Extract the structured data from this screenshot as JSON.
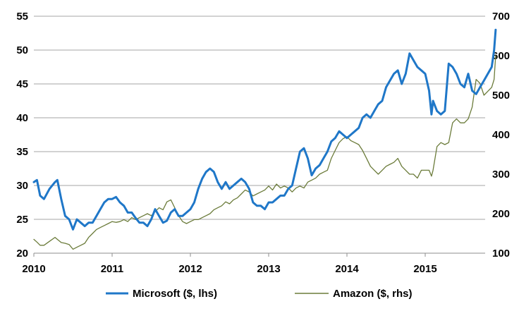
{
  "chart_data": {
    "type": "line",
    "title": "",
    "xlabel": "",
    "x_ticks": [
      "2010",
      "2011",
      "2012",
      "2013",
      "2014",
      "2015"
    ],
    "x_range": [
      2010,
      2015.9
    ],
    "y_left": {
      "label": "",
      "range": [
        20,
        55
      ],
      "ticks": [
        "20",
        "25",
        "30",
        "35",
        "40",
        "45",
        "50",
        "55"
      ]
    },
    "y_right": {
      "label": "",
      "range": [
        100,
        700
      ],
      "ticks": [
        "100",
        "200",
        "300",
        "400",
        "500",
        "600",
        "700"
      ]
    },
    "grid": "horizontal",
    "legend_position": "bottom",
    "series": [
      {
        "name": "Microsoft ($, lhs)",
        "axis": "left",
        "color": "#1f77c8",
        "x": [
          2010.0,
          2010.04,
          2010.08,
          2010.13,
          2010.2,
          2010.27,
          2010.3,
          2010.35,
          2010.4,
          2010.45,
          2010.5,
          2010.55,
          2010.6,
          2010.65,
          2010.7,
          2010.75,
          2010.8,
          2010.85,
          2010.9,
          2010.95,
          2011.0,
          2011.05,
          2011.1,
          2011.15,
          2011.2,
          2011.25,
          2011.3,
          2011.35,
          2011.4,
          2011.45,
          2011.5,
          2011.55,
          2011.6,
          2011.65,
          2011.7,
          2011.75,
          2011.8,
          2011.85,
          2011.9,
          2011.95,
          2012.0,
          2012.05,
          2012.1,
          2012.15,
          2012.2,
          2012.25,
          2012.3,
          2012.35,
          2012.4,
          2012.45,
          2012.5,
          2012.55,
          2012.6,
          2012.65,
          2012.7,
          2012.75,
          2012.8,
          2012.85,
          2012.9,
          2012.95,
          2013.0,
          2013.05,
          2013.1,
          2013.15,
          2013.2,
          2013.25,
          2013.3,
          2013.35,
          2013.4,
          2013.45,
          2013.5,
          2013.55,
          2013.6,
          2013.65,
          2013.7,
          2013.75,
          2013.8,
          2013.85,
          2013.9,
          2013.95,
          2014.0,
          2014.05,
          2014.1,
          2014.15,
          2014.2,
          2014.25,
          2014.3,
          2014.35,
          2014.4,
          2014.45,
          2014.5,
          2014.55,
          2014.6,
          2014.65,
          2014.7,
          2014.75,
          2014.8,
          2014.85,
          2014.9,
          2014.95,
          2015.0,
          2015.05,
          2015.08,
          2015.1,
          2015.15,
          2015.2,
          2015.25,
          2015.3,
          2015.35,
          2015.4,
          2015.45,
          2015.5,
          2015.55,
          2015.6,
          2015.65,
          2015.7,
          2015.75,
          2015.8,
          2015.85,
          2015.88,
          2015.9
        ],
        "values": [
          30.5,
          30.8,
          28.5,
          28.0,
          29.5,
          30.5,
          30.8,
          28.0,
          25.5,
          25.0,
          23.5,
          25.0,
          24.5,
          24.0,
          24.5,
          24.5,
          25.5,
          26.5,
          27.5,
          28.0,
          28.0,
          28.3,
          27.5,
          27.0,
          26.0,
          26.0,
          25.2,
          24.5,
          24.5,
          24.0,
          25.0,
          26.5,
          25.5,
          24.5,
          24.8,
          26.0,
          26.5,
          25.5,
          25.5,
          26.0,
          26.5,
          27.5,
          29.5,
          31.0,
          32.0,
          32.5,
          32.0,
          30.5,
          29.5,
          30.5,
          29.5,
          30.0,
          30.5,
          31.0,
          30.5,
          29.5,
          27.5,
          27.0,
          27.0,
          26.5,
          27.5,
          27.5,
          28.0,
          28.5,
          28.5,
          29.5,
          30.0,
          32.5,
          35.0,
          35.5,
          34.0,
          31.5,
          32.5,
          33.0,
          34.0,
          35.0,
          36.5,
          37.0,
          38.0,
          37.5,
          37.0,
          37.5,
          38.0,
          38.5,
          40.0,
          40.5,
          40.0,
          41.0,
          42.0,
          42.5,
          44.5,
          45.5,
          46.5,
          47.0,
          45.0,
          46.5,
          49.5,
          48.5,
          47.5,
          47.0,
          46.5,
          44.0,
          40.5,
          42.5,
          41.0,
          40.5,
          41.0,
          48.0,
          47.5,
          46.5,
          45.0,
          44.5,
          46.5,
          44.0,
          43.5,
          44.5,
          45.5,
          46.5,
          47.5,
          50.0,
          53.0
        ]
      },
      {
        "name": "Amazon ($, rhs)",
        "axis": "right",
        "color": "#6b7b3a",
        "x": [
          2010.0,
          2010.04,
          2010.08,
          2010.13,
          2010.2,
          2010.27,
          2010.3,
          2010.35,
          2010.4,
          2010.45,
          2010.5,
          2010.55,
          2010.6,
          2010.65,
          2010.7,
          2010.75,
          2010.8,
          2010.85,
          2010.9,
          2010.95,
          2011.0,
          2011.05,
          2011.1,
          2011.15,
          2011.2,
          2011.25,
          2011.3,
          2011.35,
          2011.4,
          2011.45,
          2011.5,
          2011.55,
          2011.6,
          2011.65,
          2011.7,
          2011.75,
          2011.8,
          2011.85,
          2011.9,
          2011.95,
          2012.0,
          2012.05,
          2012.1,
          2012.15,
          2012.2,
          2012.25,
          2012.3,
          2012.35,
          2012.4,
          2012.45,
          2012.5,
          2012.55,
          2012.6,
          2012.65,
          2012.7,
          2012.75,
          2012.8,
          2012.85,
          2012.9,
          2012.95,
          2013.0,
          2013.05,
          2013.1,
          2013.15,
          2013.2,
          2013.25,
          2013.3,
          2013.35,
          2013.4,
          2013.45,
          2013.5,
          2013.55,
          2013.6,
          2013.65,
          2013.7,
          2013.75,
          2013.8,
          2013.85,
          2013.9,
          2013.95,
          2014.0,
          2014.05,
          2014.1,
          2014.15,
          2014.2,
          2014.25,
          2014.3,
          2014.35,
          2014.4,
          2014.45,
          2014.5,
          2014.55,
          2014.6,
          2014.65,
          2014.7,
          2014.75,
          2014.8,
          2014.85,
          2014.9,
          2014.95,
          2015.0,
          2015.05,
          2015.08,
          2015.1,
          2015.15,
          2015.2,
          2015.25,
          2015.3,
          2015.35,
          2015.4,
          2015.45,
          2015.5,
          2015.55,
          2015.6,
          2015.65,
          2015.7,
          2015.75,
          2015.8,
          2015.85,
          2015.88,
          2015.9
        ],
        "values": [
          135,
          128,
          120,
          120,
          130,
          140,
          135,
          127,
          125,
          122,
          110,
          115,
          120,
          125,
          140,
          150,
          160,
          165,
          170,
          175,
          180,
          178,
          180,
          185,
          180,
          190,
          185,
          190,
          195,
          200,
          195,
          205,
          215,
          210,
          230,
          235,
          215,
          195,
          180,
          175,
          180,
          185,
          185,
          190,
          195,
          200,
          210,
          215,
          220,
          230,
          225,
          235,
          240,
          250,
          260,
          255,
          245,
          250,
          255,
          260,
          270,
          260,
          275,
          265,
          270,
          265,
          255,
          265,
          270,
          265,
          280,
          285,
          290,
          300,
          305,
          310,
          340,
          360,
          380,
          390,
          395,
          385,
          380,
          375,
          360,
          340,
          320,
          310,
          300,
          310,
          320,
          325,
          330,
          340,
          320,
          310,
          300,
          300,
          290,
          310,
          310,
          310,
          295,
          310,
          370,
          380,
          375,
          380,
          430,
          440,
          430,
          430,
          440,
          470,
          540,
          530,
          500,
          510,
          520,
          540,
          600
        ]
      }
    ]
  }
}
